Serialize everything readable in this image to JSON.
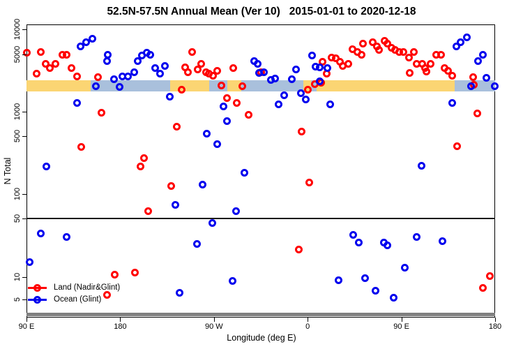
{
  "title": "52.5N-57.5N Annual Mean (Ver 10)   2015-01-01 to 2020-12-18",
  "chart_data": {
    "type": "scatter",
    "title": "52.5N-57.5N Annual Mean (Ver 10)   2015-01-01 to 2020-12-18",
    "xlabel": "Longitude (deg E)",
    "ylabel": "N Total",
    "x_axis": {
      "note": "longitude axis runs 90E eastward wrapping the globe 1.25 times: 90E,180,90W,0,90E,180; values below are degrees along that axis (90..540)",
      "range": [
        90,
        541.3
      ],
      "ticks": [
        {
          "value": 90,
          "label": "90 E"
        },
        {
          "value": 180,
          "label": "180"
        },
        {
          "value": 270,
          "label": "90 W"
        },
        {
          "value": 360,
          "label": "0"
        },
        {
          "value": 450,
          "label": "90 E"
        },
        {
          "value": 540,
          "label": "180"
        }
      ]
    },
    "y_axis": {
      "scale": "log10, panel broken by horizontal rule at N=50",
      "range": [
        4.5,
        11500
      ],
      "divider_value": 50,
      "ticks": [
        {
          "value": 10000,
          "label": "10000"
        },
        {
          "value": 5000,
          "label": "5000"
        },
        {
          "value": 1000,
          "label": "1000"
        },
        {
          "value": 500,
          "label": "500"
        },
        {
          "value": 100,
          "label": "100"
        },
        {
          "value": 50,
          "label": "50"
        },
        {
          "value": 10,
          "label": "10"
        },
        {
          "value": 5,
          "label": "5"
        }
      ]
    },
    "legend_position": "bottom-left",
    "grid": false,
    "series": [
      {
        "name": "Land (Nadir&Glint)",
        "color": "#FF0000",
        "marker": "open-circle",
        "points": [
          [
            90,
            5200
          ],
          [
            103.4,
            5300
          ],
          [
            124.2,
            5000
          ],
          [
            128.3,
            5000
          ],
          [
            108.1,
            3800
          ],
          [
            117.5,
            3800
          ],
          [
            112.2,
            3380
          ],
          [
            99.4,
            2940
          ],
          [
            133,
            3380
          ],
          [
            138.4,
            2720
          ],
          [
            158.5,
            2620
          ],
          [
            161.9,
            980
          ],
          [
            142.4,
            367
          ],
          [
            234.4,
            647
          ],
          [
            202.8,
            274
          ],
          [
            199.5,
            217
          ],
          [
            229,
            124
          ],
          [
            206.9,
            61
          ],
          [
            239.1,
            1870
          ],
          [
            249.2,
            5300
          ],
          [
            242.4,
            3510
          ],
          [
            245.1,
            3060
          ],
          [
            254.5,
            3310
          ],
          [
            257.9,
            3800
          ],
          [
            262.6,
            3060
          ],
          [
            265.3,
            2940
          ],
          [
            269.3,
            2770
          ],
          [
            273.3,
            3180
          ],
          [
            288.8,
            3380
          ],
          [
            297.5,
            2030
          ],
          [
            277.4,
            2070
          ],
          [
            282.7,
            1480
          ],
          [
            292.1,
            1270
          ],
          [
            303.6,
            910
          ],
          [
            315,
            3060
          ],
          [
            360,
            1840
          ],
          [
            366.7,
            2190
          ],
          [
            372.7,
            2280
          ],
          [
            374.1,
            4030
          ],
          [
            378.1,
            2890
          ],
          [
            382.8,
            4620
          ],
          [
            386.8,
            4450
          ],
          [
            353.9,
            574
          ],
          [
            361.3,
            139
          ],
          [
            390.9,
            4030
          ],
          [
            393.6,
            3650
          ],
          [
            398.9,
            3800
          ],
          [
            403,
            5830
          ],
          [
            407.7,
            5300
          ],
          [
            411.7,
            5000
          ],
          [
            413,
            6680
          ],
          [
            422.4,
            6940
          ],
          [
            426.5,
            6180
          ],
          [
            428.5,
            5720
          ],
          [
            433.8,
            7210
          ],
          [
            436.5,
            6680
          ],
          [
            440.5,
            6060
          ],
          [
            443.9,
            5720
          ],
          [
            447.9,
            5400
          ],
          [
            451.9,
            5300
          ],
          [
            457.3,
            4620
          ],
          [
            458,
            3000
          ],
          [
            462,
            5300
          ],
          [
            464.7,
            3870
          ],
          [
            470.1,
            3800
          ],
          [
            472.8,
            3440
          ],
          [
            474.1,
            3120
          ],
          [
            478.2,
            3800
          ],
          [
            483.5,
            5000
          ],
          [
            488.2,
            5000
          ],
          [
            491.6,
            3440
          ],
          [
            494.9,
            3180
          ],
          [
            499,
            2770
          ],
          [
            519.1,
            2620
          ],
          [
            519.8,
            2110
          ],
          [
            523.1,
            960
          ],
          [
            503.7,
            380
          ],
          [
            174.6,
            10.6
          ],
          [
            194.1,
            11.4
          ],
          [
            167.2,
            5.8
          ],
          [
            351.3,
            21.5
          ],
          [
            535.3,
            10.2
          ],
          [
            528.6,
            7.2
          ]
        ]
      },
      {
        "name": "Ocean (Glint)",
        "color": "#0000EE",
        "marker": "open-circle",
        "points": [
          [
            141.7,
            6180
          ],
          [
            147.1,
            7070
          ],
          [
            153.1,
            7640
          ],
          [
            156.5,
            2030
          ],
          [
            138.4,
            1270
          ],
          [
            108.8,
            217
          ],
          [
            167.9,
            5000
          ],
          [
            167.2,
            4110
          ],
          [
            196.8,
            4110
          ],
          [
            200.8,
            4810
          ],
          [
            205.5,
            5200
          ],
          [
            208.9,
            5000
          ],
          [
            213.6,
            3440
          ],
          [
            218.3,
            2890
          ],
          [
            223,
            3650
          ],
          [
            193.4,
            3060
          ],
          [
            187.4,
            2670
          ],
          [
            182,
            2670
          ],
          [
            173.9,
            2470
          ],
          [
            179.3,
            1990
          ],
          [
            227.7,
            1540
          ],
          [
            233,
            74
          ],
          [
            279.4,
            1170
          ],
          [
            282.7,
            760
          ],
          [
            263.3,
            540
          ],
          [
            273.3,
            400
          ],
          [
            299.5,
            180
          ],
          [
            259.2,
            130
          ],
          [
            291.4,
            62
          ],
          [
            308.9,
            4190
          ],
          [
            312.3,
            3800
          ],
          [
            313.6,
            3000
          ],
          [
            317.7,
            3060
          ],
          [
            324.4,
            2420
          ],
          [
            328.4,
            2520
          ],
          [
            344.5,
            2470
          ],
          [
            348.6,
            3310
          ],
          [
            364,
            4810
          ],
          [
            367.4,
            3580
          ],
          [
            371.4,
            3510
          ],
          [
            378.8,
            3380
          ],
          [
            371.4,
            2370
          ],
          [
            337.1,
            1600
          ],
          [
            332.4,
            1240
          ],
          [
            353.2,
            1670
          ],
          [
            357.9,
            1400
          ],
          [
            381.5,
            1240
          ],
          [
            503,
            6180
          ],
          [
            507.1,
            6940
          ],
          [
            513.1,
            7940
          ],
          [
            528.6,
            5000
          ],
          [
            523.9,
            4110
          ],
          [
            531.9,
            2570
          ],
          [
            517.1,
            2030
          ],
          [
            539.9,
            2030
          ],
          [
            499,
            1270
          ],
          [
            469.4,
            220
          ],
          [
            103.4,
            33
          ],
          [
            128.3,
            30
          ],
          [
            92.7,
            15
          ],
          [
            237.1,
            6.2
          ],
          [
            268.6,
            44
          ],
          [
            253.9,
            25
          ],
          [
            288.1,
            8.8
          ],
          [
            389.5,
            9
          ],
          [
            403.6,
            32
          ],
          [
            409,
            26
          ],
          [
            433.2,
            26
          ],
          [
            436.5,
            24
          ],
          [
            464.7,
            30
          ],
          [
            453.3,
            13
          ],
          [
            415.1,
            9.6
          ],
          [
            425.1,
            6.6
          ],
          [
            442.5,
            5.3
          ],
          [
            489.6,
            27
          ]
        ]
      }
    ],
    "surface_band": {
      "description": "horizontal strip at N≈1800-2400 showing land(orange)/ocean(blue) along the latitude belt",
      "land_color": "#FBD573",
      "ocean_color": "#A9C0DC",
      "segments": [
        {
          "from": 90,
          "to": 151.8,
          "surface": "land"
        },
        {
          "from": 151.8,
          "to": 227.7,
          "surface": "ocean"
        },
        {
          "from": 227.7,
          "to": 265.3,
          "surface": "land"
        },
        {
          "from": 265.3,
          "to": 282.7,
          "surface": "ocean"
        },
        {
          "from": 282.7,
          "to": 296.1,
          "surface": "land"
        },
        {
          "from": 296.1,
          "to": 355.9,
          "surface": "ocean"
        },
        {
          "from": 355.9,
          "to": 363.3,
          "surface": "land"
        },
        {
          "from": 363.3,
          "to": 368.7,
          "surface": "ocean"
        },
        {
          "from": 368.7,
          "to": 501,
          "surface": "land"
        },
        {
          "from": 501,
          "to": 541.3,
          "surface": "ocean"
        }
      ]
    },
    "divider_line_color": "#1a1a1a",
    "bottom_bar_color": "#7f7f7f"
  }
}
